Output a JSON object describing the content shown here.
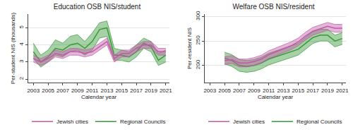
{
  "chart_data": [
    {
      "type": "line",
      "title": "Education OSB NIS/student",
      "x_label": "Calendar year",
      "y_label": "Per-student NIS (thousands)",
      "x": [
        2003,
        2004,
        2005,
        2006,
        2007,
        2008,
        2009,
        2010,
        2011,
        2012,
        2013,
        2014,
        2015,
        2016,
        2017,
        2018,
        2019,
        2020,
        2021
      ],
      "xlim": [
        2002.3,
        2021.5
      ],
      "xticks": [
        2003,
        2005,
        2007,
        2009,
        2011,
        2013,
        2015,
        2017,
        2019,
        2021
      ],
      "ylim": [
        1.8,
        5.8
      ],
      "yticks": [
        2,
        3,
        4,
        5
      ],
      "grid": true,
      "legend": "bottom",
      "series": [
        {
          "name": "Regional Councils",
          "color": "#3a9a3a",
          "values": [
            3.6,
            3.0,
            3.3,
            3.8,
            3.7,
            4.0,
            4.1,
            3.8,
            4.2,
            4.9,
            5.0,
            3.4,
            3.4,
            3.3,
            3.6,
            4.1,
            3.9,
            3.1,
            3.4
          ],
          "lower": [
            3.2,
            2.7,
            3.0,
            3.4,
            3.3,
            3.6,
            3.7,
            3.4,
            3.7,
            4.4,
            4.5,
            3.1,
            3.1,
            3.0,
            3.3,
            3.8,
            3.6,
            2.8,
            3.0
          ],
          "upper": [
            4.1,
            3.4,
            3.7,
            4.3,
            4.1,
            4.5,
            4.6,
            4.2,
            4.7,
            5.3,
            5.4,
            3.8,
            3.7,
            3.6,
            4.0,
            4.4,
            4.2,
            3.5,
            3.7
          ]
        },
        {
          "name": "Jewish cities",
          "color": "#c05aa8",
          "values": [
            3.2,
            3.0,
            3.2,
            3.5,
            3.4,
            3.6,
            3.6,
            3.5,
            3.6,
            3.9,
            4.2,
            3.2,
            3.5,
            3.5,
            3.8,
            4.0,
            4.0,
            3.6,
            3.6
          ],
          "lower": [
            3.0,
            2.8,
            3.0,
            3.3,
            3.2,
            3.4,
            3.4,
            3.3,
            3.4,
            3.7,
            4.0,
            3.0,
            3.3,
            3.3,
            3.6,
            3.8,
            3.8,
            3.4,
            3.4
          ],
          "upper": [
            3.4,
            3.2,
            3.4,
            3.7,
            3.6,
            3.8,
            3.8,
            3.7,
            3.8,
            4.1,
            4.4,
            3.4,
            3.7,
            3.7,
            4.0,
            4.2,
            4.2,
            3.8,
            3.8
          ]
        }
      ]
    },
    {
      "type": "line",
      "title": "Welfare OSB NIS/resident",
      "x_label": "Calendar year",
      "y_label": "Per-resident NIS",
      "x": [
        2005,
        2006,
        2007,
        2008,
        2009,
        2010,
        2011,
        2012,
        2013,
        2014,
        2015,
        2016,
        2017,
        2018,
        2019,
        2020,
        2021
      ],
      "xlim": [
        2002.3,
        2021.5
      ],
      "xticks": [
        2003,
        2005,
        2007,
        2009,
        2011,
        2013,
        2015,
        2017,
        2019,
        2021
      ],
      "ylim": [
        165,
        305
      ],
      "yticks": [
        200,
        250,
        300
      ],
      "grid": true,
      "legend": "bottom",
      "series": [
        {
          "name": "Regional Councils",
          "color": "#3a9a3a",
          "values": [
            215,
            210,
            200,
            198,
            200,
            205,
            213,
            218,
            222,
            228,
            233,
            245,
            257,
            262,
            262,
            250,
            255
          ],
          "lower": [
            203,
            198,
            188,
            186,
            188,
            193,
            201,
            206,
            210,
            216,
            221,
            233,
            245,
            250,
            250,
            238,
            243
          ],
          "upper": [
            227,
            222,
            212,
            210,
            212,
            217,
            225,
            230,
            234,
            240,
            245,
            257,
            269,
            274,
            274,
            262,
            267
          ]
        },
        {
          "name": "Jewish cities",
          "color": "#c05aa8",
          "values": [
            210,
            212,
            205,
            205,
            208,
            213,
            222,
            228,
            233,
            240,
            248,
            260,
            270,
            275,
            280,
            276,
            276
          ],
          "lower": [
            202,
            204,
            197,
            197,
            200,
            205,
            214,
            220,
            225,
            232,
            240,
            252,
            262,
            267,
            272,
            268,
            268
          ],
          "upper": [
            218,
            220,
            213,
            213,
            216,
            221,
            230,
            236,
            241,
            248,
            256,
            268,
            278,
            283,
            288,
            284,
            284
          ]
        }
      ]
    }
  ]
}
